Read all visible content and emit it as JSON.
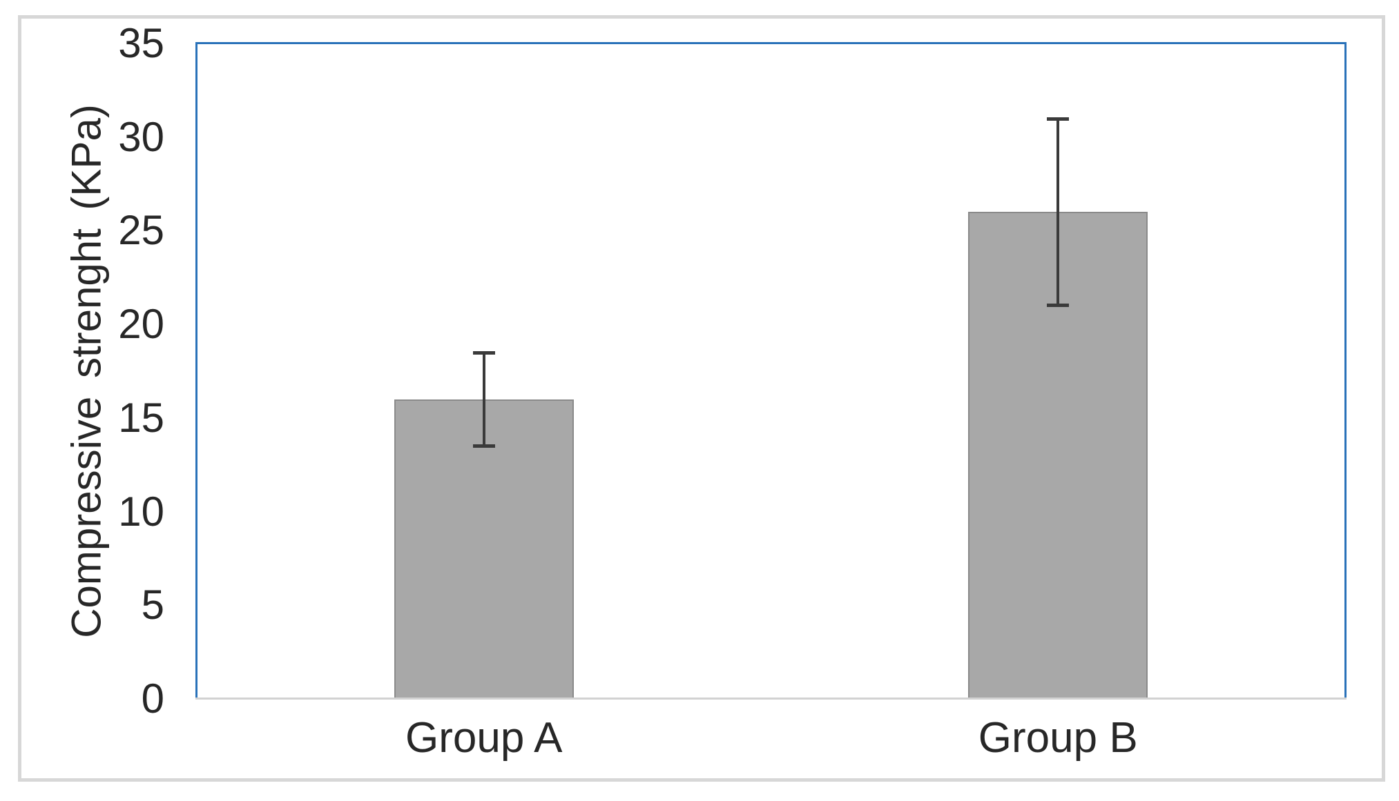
{
  "figure": {
    "background_color": "#ffffff",
    "outer_border_color": "#d7d7d7",
    "plot_border_color": "#2a72b9",
    "x_axis_line_color": "#d2d2d2"
  },
  "chart_data": {
    "type": "bar",
    "title": "",
    "xlabel": "",
    "ylabel": "Compressive strenght (KPa)",
    "categories": [
      "Group A",
      "Group B"
    ],
    "values": [
      16,
      26
    ],
    "error_low": [
      13.5,
      21
    ],
    "error_high": [
      18.5,
      31
    ],
    "ylim": [
      0,
      35
    ],
    "yticks": [
      0,
      5,
      10,
      15,
      20,
      25,
      30,
      35
    ],
    "grid": false,
    "legend": "none",
    "bar_color": "#a8a8a8",
    "bar_border_color": "#8a8a8a",
    "error_bar_color": "#3a3a3a",
    "tick_label_color": "#272727",
    "axis_title_color": "#272727"
  }
}
